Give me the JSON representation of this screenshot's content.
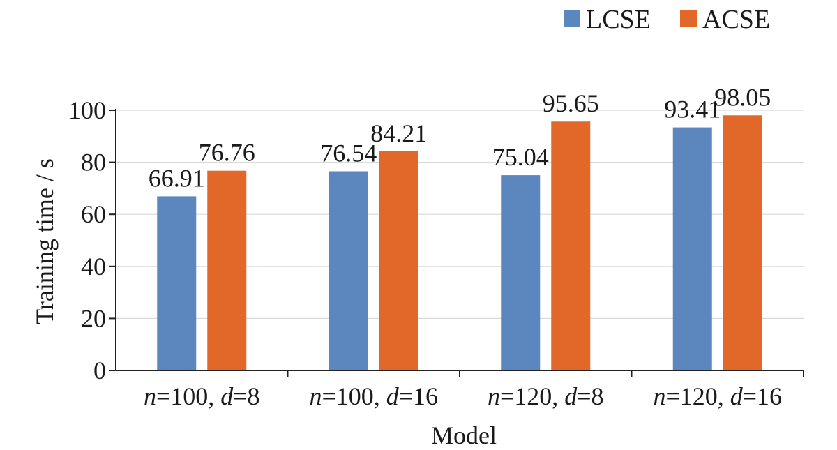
{
  "chart_data": {
    "type": "bar",
    "title": "",
    "xlabel": "Model",
    "ylabel": "Training time / s",
    "ylim": [
      0,
      100
    ],
    "yticks": [
      0,
      20,
      40,
      60,
      80,
      100
    ],
    "grid": true,
    "legend_position": "top-right",
    "categories": [
      {
        "n_label": "n",
        "n_value": "=100, ",
        "d_label": "d",
        "d_value": "=8"
      },
      {
        "n_label": "n",
        "n_value": "=100, ",
        "d_label": "d",
        "d_value": "=16"
      },
      {
        "n_label": "n",
        "n_value": "=120, ",
        "d_label": "d",
        "d_value": "=8"
      },
      {
        "n_label": "n",
        "n_value": "=120, ",
        "d_label": "d",
        "d_value": "=16"
      }
    ],
    "series": [
      {
        "name": "LCSE",
        "color": "#5b86be",
        "values": [
          66.91,
          76.54,
          75.04,
          93.41
        ],
        "labels": [
          "66.91",
          "76.54",
          "75.04",
          "93.41"
        ]
      },
      {
        "name": "ACSE",
        "color": "#e2682a",
        "values": [
          76.76,
          84.21,
          95.65,
          98.05
        ],
        "labels": [
          "76.76",
          "84.21",
          "95.65",
          "98.05"
        ]
      }
    ]
  }
}
